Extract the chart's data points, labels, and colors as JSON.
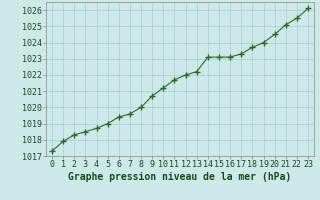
{
  "x": [
    0,
    1,
    2,
    3,
    4,
    5,
    6,
    7,
    8,
    9,
    10,
    11,
    12,
    13,
    14,
    15,
    16,
    17,
    18,
    19,
    20,
    21,
    22,
    23
  ],
  "y": [
    1017.3,
    1017.9,
    1018.3,
    1018.5,
    1018.7,
    1019.0,
    1019.4,
    1019.6,
    1020.0,
    1020.7,
    1021.2,
    1021.7,
    1022.0,
    1022.2,
    1023.1,
    1023.1,
    1023.1,
    1023.3,
    1023.7,
    1024.0,
    1024.5,
    1025.1,
    1025.5,
    1026.1
  ],
  "line_color": "#2d6a2d",
  "marker": "+",
  "marker_size": 4,
  "bg_color": "#cce8e8",
  "grid_color": "#aacece",
  "xlabel": "Graphe pression niveau de la mer (hPa)",
  "ylim": [
    1017,
    1026.5
  ],
  "yticks": [
    1017,
    1018,
    1019,
    1020,
    1021,
    1022,
    1023,
    1024,
    1025,
    1026
  ],
  "xticks": [
    0,
    1,
    2,
    3,
    4,
    5,
    6,
    7,
    8,
    9,
    10,
    11,
    12,
    13,
    14,
    15,
    16,
    17,
    18,
    19,
    20,
    21,
    22,
    23
  ],
  "xlim": [
    -0.5,
    23.5
  ],
  "tick_color": "#1a4a1a",
  "tick_fontsize": 6,
  "xlabel_fontsize": 7,
  "xlabel_fontweight": "bold"
}
